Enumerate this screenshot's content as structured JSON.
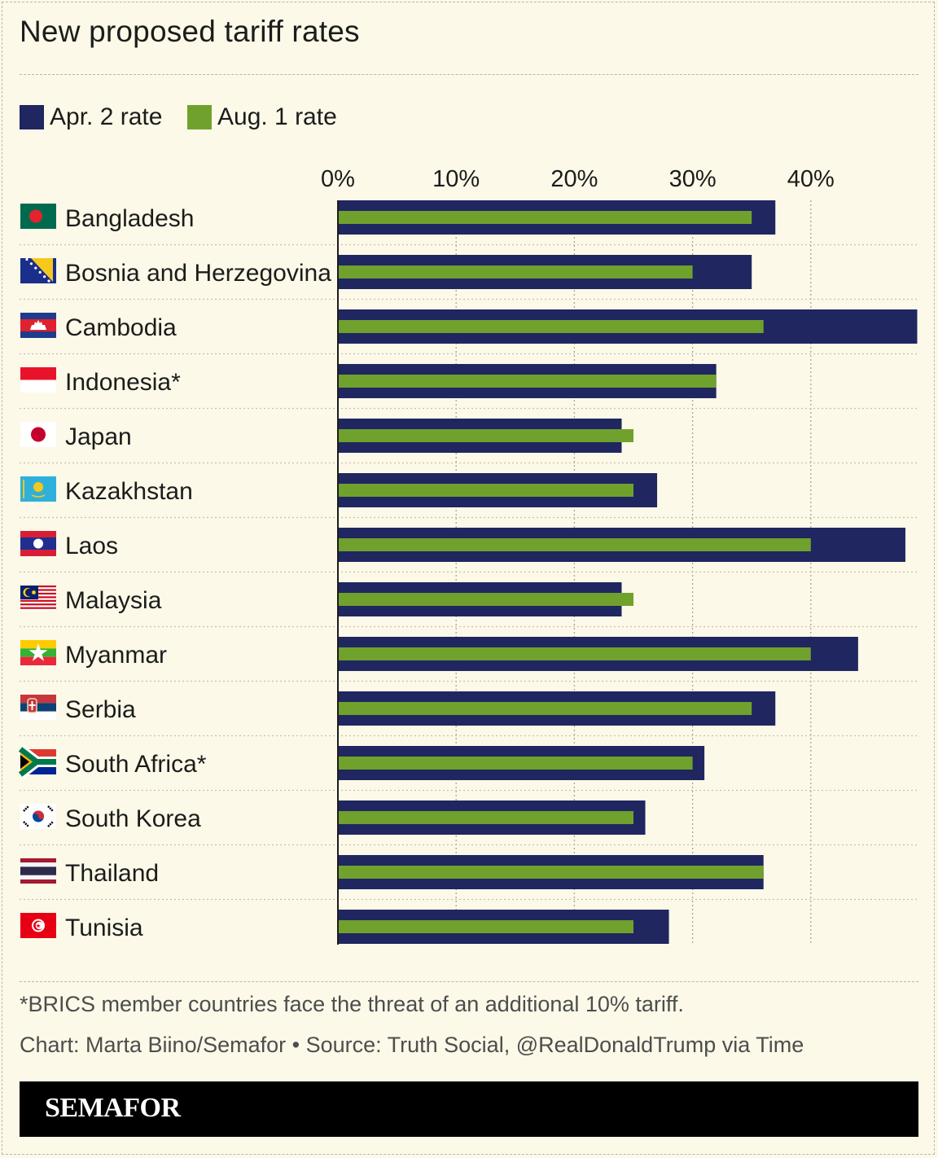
{
  "title": "New proposed tariff rates",
  "legend": [
    {
      "label": "Apr. 2 rate",
      "color": "#1f2660"
    },
    {
      "label": "Aug. 1 rate",
      "color": "#70a12d"
    }
  ],
  "chart_data": {
    "type": "bar",
    "orientation": "horizontal",
    "title": "New proposed tariff rates",
    "xlabel": "",
    "ylabel": "",
    "xlim": [
      0,
      49
    ],
    "x_ticks": [
      "0%",
      "10%",
      "20%",
      "30%",
      "40%"
    ],
    "x_tick_values": [
      0,
      10,
      20,
      30,
      40
    ],
    "grid": true,
    "legend_position": "top-left",
    "categories": [
      "Bangladesh",
      "Bosnia and Herzegovina",
      "Cambodia",
      "Indonesia*",
      "Japan",
      "Kazakhstan",
      "Laos",
      "Malaysia",
      "Myanmar",
      "Serbia",
      "South Africa*",
      "South Korea",
      "Thailand",
      "Tunisia"
    ],
    "flag_icons": [
      "bangladesh-flag-icon",
      "bosnia-flag-icon",
      "cambodia-flag-icon",
      "indonesia-flag-icon",
      "japan-flag-icon",
      "kazakhstan-flag-icon",
      "laos-flag-icon",
      "malaysia-flag-icon",
      "myanmar-flag-icon",
      "serbia-flag-icon",
      "south-africa-flag-icon",
      "south-korea-flag-icon",
      "thailand-flag-icon",
      "tunisia-flag-icon"
    ],
    "series": [
      {
        "name": "Apr. 2 rate",
        "color": "#1f2660",
        "values": [
          37,
          35,
          49,
          32,
          24,
          27,
          48,
          24,
          44,
          37,
          31,
          26,
          36,
          28
        ]
      },
      {
        "name": "Aug. 1 rate",
        "color": "#70a12d",
        "values": [
          35,
          30,
          36,
          32,
          25,
          25,
          40,
          25,
          40,
          35,
          30,
          25,
          36,
          25
        ]
      }
    ]
  },
  "footnote": "*BRICS member countries face the threat of an additional 10% tariff.",
  "credit": "Chart: Marta Biino/Semafor • Source: Truth Social, @RealDonaldTrump via Time",
  "brand": "SEMAFOR"
}
